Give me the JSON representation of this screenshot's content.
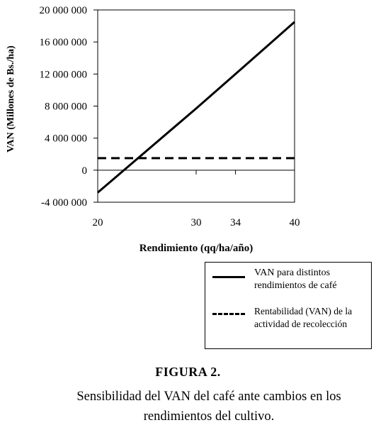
{
  "chart_data": {
    "type": "line",
    "x": [
      20,
      30,
      34,
      40
    ],
    "xlabel": "Rendimiento (qq/ha/año)",
    "ylabel": "VAN (Millones de Bs./ha)",
    "xlim": [
      20,
      40
    ],
    "ylim": [
      -4000000,
      20000000
    ],
    "x_tick_labels": [
      "20",
      "30",
      "34",
      "40"
    ],
    "y_ticks": [
      -4000000,
      0,
      4000000,
      8000000,
      12000000,
      16000000,
      20000000
    ],
    "y_tick_labels": [
      "-4 000 000",
      "0",
      "4 000 000",
      "8 000 000",
      "12 000 000",
      "16 000 000",
      "20 000 000"
    ],
    "grid": false,
    "legend_position": "bottom-right, below plot",
    "series": [
      {
        "name": "VAN para distintos rendimientos de café",
        "style": "solid",
        "values": [
          -2800000,
          7700000,
          12000000,
          18500000
        ]
      },
      {
        "name": "Rentabilidad (VAN) de la actividad de recolección",
        "style": "dashed",
        "values": [
          1500000,
          1500000,
          1500000,
          1500000
        ]
      }
    ]
  },
  "legend": {
    "items": [
      {
        "label_line1": "VAN para distintos",
        "label_line2": "rendimientos de café"
      },
      {
        "label_line1": "Rentabilidad (VAN) de la",
        "label_line2": "actividad de recolección"
      }
    ]
  },
  "figure": {
    "title": "FIGURA 2.",
    "caption_line1": "Sensibilidad del VAN del café ante cambios en los",
    "caption_line2": "rendimientos del cultivo."
  }
}
